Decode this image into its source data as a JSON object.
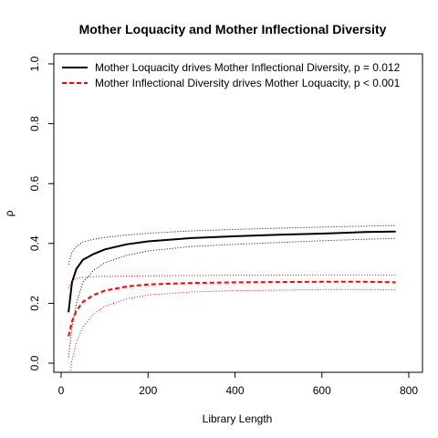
{
  "chart_data": {
    "type": "line",
    "title": "Mother Loquacity and Mother Inflectional Diversity",
    "xlabel": "Library Length",
    "ylabel": "ρ",
    "xlim": [
      0,
      800
    ],
    "ylim": [
      0,
      1
    ],
    "x_ticks": [
      "0",
      "200",
      "400",
      "600",
      "800"
    ],
    "y_ticks": [
      "0.0",
      "0.2",
      "0.4",
      "0.6",
      "0.8",
      "1.0"
    ],
    "grid": false,
    "legend_position": "top-left",
    "x": [
      17,
      25,
      35,
      50,
      75,
      100,
      150,
      200,
      300,
      400,
      500,
      600,
      700,
      770
    ],
    "series": [
      {
        "name": "Mother Loquacity drives Mother Inflectional Diversity, p = 0.012",
        "color": "#000000",
        "style": "solid",
        "values": [
          0.17,
          0.27,
          0.315,
          0.345,
          0.365,
          0.38,
          0.397,
          0.407,
          0.418,
          0.424,
          0.429,
          0.433,
          0.438,
          0.44
        ],
        "upper": [
          0.33,
          0.37,
          0.39,
          0.405,
          0.414,
          0.42,
          0.428,
          0.434,
          0.442,
          0.447,
          0.451,
          0.455,
          0.458,
          0.46
        ],
        "lower": [
          0.02,
          0.12,
          0.2,
          0.27,
          0.31,
          0.335,
          0.36,
          0.375,
          0.39,
          0.397,
          0.403,
          0.409,
          0.414,
          0.417
        ]
      },
      {
        "name": "Mother Inflectional Diversity drives Mother Loquacity, p < 0.001",
        "color": "#ff0000",
        "style": "dashed",
        "values": [
          0.09,
          0.14,
          0.175,
          0.205,
          0.228,
          0.242,
          0.256,
          0.263,
          0.268,
          0.27,
          0.271,
          0.272,
          0.272,
          0.27
        ],
        "upper": [
          0.25,
          0.275,
          0.283,
          0.287,
          0.289,
          0.29,
          0.291,
          0.292,
          0.293,
          0.294,
          0.294,
          0.295,
          0.295,
          0.294
        ],
        "lower": [
          -0.07,
          0.01,
          0.07,
          0.12,
          0.165,
          0.19,
          0.215,
          0.228,
          0.238,
          0.242,
          0.244,
          0.246,
          0.246,
          0.245
        ]
      }
    ]
  }
}
